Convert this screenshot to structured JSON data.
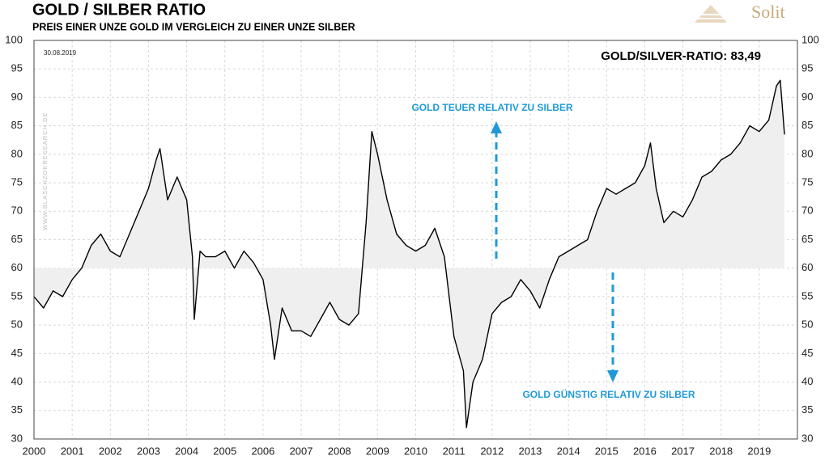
{
  "chart_data": {
    "type": "line",
    "title": "GOLD / SILBER RATIO",
    "subtitle": "PREIS EINER UNZE GOLD IM VERGLEICH ZU EINER UNZE SILBER",
    "date": "30.08.2019",
    "current_value_label": "GOLD/SILVER-RATIO: 83,49",
    "annotation_up": "GOLD TEUER RELATIV ZU SILBER",
    "annotation_down": "GOLD GÜNSTIG RELATIV ZU SILBER",
    "watermark": "WWW.BLASCHZOKRESEARCH.DE",
    "logo": "Solit",
    "baseline": 60,
    "line_color": "#000000",
    "fill_color": "#efefef",
    "annotation_color": "#1f9ad6",
    "grid": true,
    "x": [
      2000.0,
      2000.25,
      2000.5,
      2000.75,
      2001.0,
      2001.25,
      2001.5,
      2001.75,
      2002.0,
      2002.25,
      2002.5,
      2002.75,
      2003.0,
      2003.2,
      2003.3,
      2003.5,
      2003.75,
      2004.0,
      2004.15,
      2004.2,
      2004.35,
      2004.5,
      2004.75,
      2005.0,
      2005.25,
      2005.5,
      2005.75,
      2006.0,
      2006.2,
      2006.3,
      2006.5,
      2006.75,
      2007.0,
      2007.25,
      2007.5,
      2007.75,
      2008.0,
      2008.25,
      2008.5,
      2008.7,
      2008.85,
      2009.0,
      2009.25,
      2009.5,
      2009.75,
      2010.0,
      2010.25,
      2010.5,
      2010.75,
      2011.0,
      2011.25,
      2011.33,
      2011.5,
      2011.75,
      2012.0,
      2012.25,
      2012.5,
      2012.75,
      2013.0,
      2013.25,
      2013.5,
      2013.75,
      2014.0,
      2014.25,
      2014.5,
      2014.75,
      2015.0,
      2015.25,
      2015.5,
      2015.75,
      2016.0,
      2016.15,
      2016.3,
      2016.5,
      2016.75,
      2017.0,
      2017.25,
      2017.5,
      2017.75,
      2018.0,
      2018.25,
      2018.5,
      2018.75,
      2019.0,
      2019.25,
      2019.45,
      2019.55,
      2019.66
    ],
    "series": [
      {
        "name": "Gold/Silber Ratio",
        "values": [
          55,
          53,
          56,
          55,
          58,
          60,
          64,
          66,
          63,
          62,
          66,
          70,
          74,
          79,
          81,
          72,
          76,
          72,
          62,
          51,
          63,
          62,
          62,
          63,
          60,
          63,
          61,
          58,
          50,
          44,
          53,
          49,
          49,
          48,
          51,
          54,
          51,
          50,
          52,
          68,
          84,
          80,
          72,
          66,
          64,
          63,
          64,
          67,
          62,
          48,
          42,
          32,
          40,
          44,
          52,
          54,
          55,
          58,
          56,
          53,
          58,
          62,
          63,
          64,
          65,
          70,
          74,
          73,
          74,
          75,
          78,
          82,
          74,
          68,
          70,
          69,
          72,
          76,
          77,
          79,
          80,
          82,
          85,
          84,
          86,
          92,
          93,
          83.49
        ]
      }
    ],
    "xlim": [
      2000,
      2020
    ],
    "xticks": [
      2000,
      2001,
      2002,
      2003,
      2004,
      2005,
      2006,
      2007,
      2008,
      2009,
      2010,
      2011,
      2012,
      2013,
      2014,
      2015,
      2016,
      2017,
      2018,
      2019
    ],
    "ylim": [
      30,
      100
    ],
    "yticks": [
      30,
      35,
      40,
      45,
      50,
      55,
      60,
      65,
      70,
      75,
      80,
      85,
      90,
      95,
      100
    ]
  }
}
